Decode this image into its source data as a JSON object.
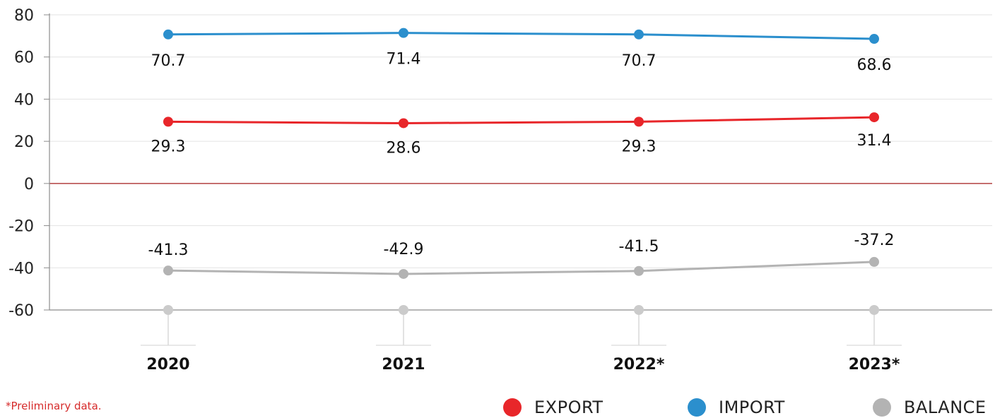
{
  "chart_data": {
    "type": "line",
    "categories": [
      "2020",
      "2021",
      "2022*",
      "2023*"
    ],
    "series": [
      {
        "name": "IMPORT",
        "values": [
          70.7,
          71.4,
          70.7,
          68.6
        ],
        "color": "#2b8fcd"
      },
      {
        "name": "EXPORT",
        "values": [
          29.3,
          28.6,
          29.3,
          31.4
        ],
        "color": "#e8262a"
      },
      {
        "name": "BALANCE",
        "values": [
          -41.3,
          -42.9,
          -41.5,
          -37.2
        ],
        "color": "#b3b3b3"
      }
    ],
    "data_labels": {
      "IMPORT": [
        "70.7",
        "71.4",
        "70.7",
        "68.6"
      ],
      "EXPORT": [
        "29.3",
        "28.6",
        "29.3",
        "31.4"
      ],
      "BALANCE": [
        "-41.3",
        "-42.9",
        "-41.5",
        "-37.2"
      ]
    },
    "yticks": [
      "80",
      "60",
      "40",
      "20",
      "0",
      "-20",
      "-40",
      "-60"
    ],
    "ytick_values": [
      80,
      60,
      40,
      20,
      0,
      -20,
      -40,
      -60
    ],
    "ylim": [
      -60,
      80
    ],
    "grid": true,
    "zero_line_color": "#a31c1c",
    "legend_position": "bottom-right",
    "title": "",
    "xlabel": "",
    "ylabel": ""
  },
  "footnote": "*Preliminary data.",
  "legend": [
    {
      "label": "EXPORT",
      "color": "#e8262a"
    },
    {
      "label": "IMPORT",
      "color": "#2b8fcd"
    },
    {
      "label": "BALANCE",
      "color": "#b3b3b3"
    }
  ]
}
